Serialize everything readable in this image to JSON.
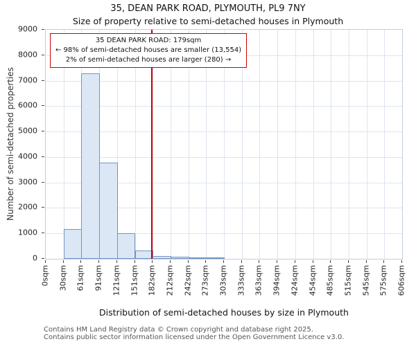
{
  "annotation": {
    "line1": "35 DEAN PARK ROAD: 179sqm",
    "line2": "← 98% of semi-detached houses are smaller (13,554)",
    "line3": "2% of semi-detached houses are larger (280) →"
  },
  "footer": {
    "line1": "Contains HM Land Registry data © Crown copyright and database right 2025.",
    "line2": "Contains public sector information licensed under the Open Government Licence v3.0."
  },
  "chart_data": {
    "type": "bar",
    "title": "35, DEAN PARK ROAD, PLYMOUTH, PL9 7NY",
    "subtitle": "Size of property relative to semi-detached houses in Plymouth",
    "xlabel": "Distribution of semi-detached houses by size in Plymouth",
    "ylabel": "Number of semi-detached properties",
    "x_tick_labels": [
      "0sqm",
      "30sqm",
      "61sqm",
      "91sqm",
      "121sqm",
      "151sqm",
      "182sqm",
      "212sqm",
      "242sqm",
      "273sqm",
      "303sqm",
      "333sqm",
      "363sqm",
      "394sqm",
      "424sqm",
      "454sqm",
      "485sqm",
      "515sqm",
      "545sqm",
      "575sqm",
      "606sqm"
    ],
    "bin_edges": [
      0,
      30,
      61,
      91,
      121,
      151,
      182,
      212,
      242,
      273,
      303,
      333,
      363,
      394,
      424,
      454,
      485,
      515,
      545,
      575,
      606
    ],
    "values": [
      0,
      1180,
      7300,
      3780,
      1010,
      330,
      120,
      70,
      50,
      40,
      0,
      0,
      0,
      0,
      0,
      0,
      0,
      0,
      0,
      0
    ],
    "ylim": [
      0,
      9000
    ],
    "y_ticks": [
      0,
      1000,
      2000,
      3000,
      4000,
      5000,
      6000,
      7000,
      8000,
      9000
    ],
    "x_max": 606,
    "marker": {
      "value": 179,
      "color": "#cc0000"
    },
    "smaller": {
      "percent": 98,
      "count": "13,554"
    },
    "larger": {
      "percent": 2,
      "count": "280"
    },
    "bar_fill": "#dce7f5",
    "bar_border": "#7094c4",
    "grid": true,
    "legend": false
  }
}
